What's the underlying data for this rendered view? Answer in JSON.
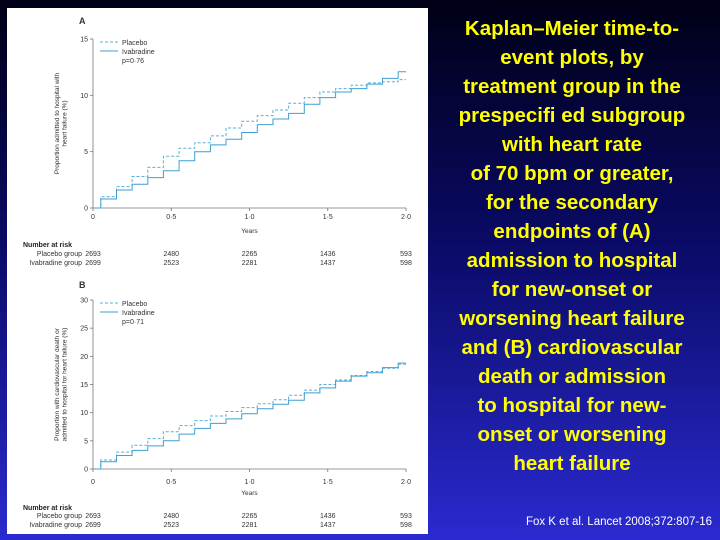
{
  "slide": {
    "title_lines": [
      "Kaplan–Meier time-to-",
      "event plots, by",
      "treatment group in the",
      "prespecifi ed subgroup",
      "with heart rate",
      "of 70 bpm or greater,",
      "for the secondary",
      "endpoints of (A)",
      "admission to hospital",
      "for new-onset or",
      "worsening heart failure",
      "and (B) cardiovascular",
      "death or admission",
      "to hospital for new-",
      "onset or worsening",
      "heart failure"
    ],
    "citation": "Fox K et al. Lancet 2008;372:807-16"
  },
  "colors": {
    "placebo": "#5aaed6",
    "ivabradine": "#3f9fd0",
    "title": "#ffff00"
  },
  "chart_data": [
    {
      "type": "line",
      "panel": "A",
      "xlabel": "Years",
      "ylabel_lines": [
        "Proportion admitted to hospital with",
        "heart failure (%)"
      ],
      "xlim": [
        0,
        2.0
      ],
      "ylim": [
        0,
        15
      ],
      "xticks": [
        0,
        0.5,
        1.0,
        1.5,
        2.0
      ],
      "xtick_labels": [
        "0",
        "0·5",
        "1·0",
        "1·5",
        "2·0"
      ],
      "yticks": [
        0,
        5,
        10,
        15
      ],
      "ytick_labels": [
        "0",
        "5",
        "10",
        "15"
      ],
      "legend": {
        "items": [
          "Placebo",
          "Ivabradine"
        ],
        "pvalue": "p=0·76",
        "placement": "top-left"
      },
      "series": [
        {
          "name": "Placebo",
          "style": "dashed",
          "x": [
            0,
            0.1,
            0.2,
            0.3,
            0.4,
            0.5,
            0.6,
            0.7,
            0.8,
            0.9,
            1.0,
            1.1,
            1.2,
            1.3,
            1.4,
            1.5,
            1.6,
            1.7,
            1.8,
            1.9,
            2.0
          ],
          "y": [
            0,
            1.0,
            1.9,
            2.8,
            3.6,
            4.6,
            5.3,
            5.8,
            6.4,
            7.1,
            7.7,
            8.2,
            8.7,
            9.3,
            9.8,
            10.3,
            10.6,
            10.9,
            11.1,
            11.2,
            11.4
          ]
        },
        {
          "name": "Ivabradine",
          "style": "solid",
          "x": [
            0,
            0.1,
            0.2,
            0.3,
            0.4,
            0.5,
            0.6,
            0.7,
            0.8,
            0.9,
            1.0,
            1.1,
            1.2,
            1.3,
            1.4,
            1.5,
            1.6,
            1.7,
            1.8,
            1.9,
            2.0
          ],
          "y": [
            0,
            0.8,
            1.6,
            2.1,
            2.7,
            3.3,
            4.2,
            5.0,
            5.6,
            6.1,
            6.7,
            7.4,
            7.9,
            8.4,
            9.2,
            9.8,
            10.3,
            10.6,
            11.0,
            11.5,
            12.1
          ]
        }
      ],
      "risk_table": {
        "title": "Number at risk",
        "rows": [
          {
            "group": "Placebo group",
            "values": [
              "2693",
              "2480",
              "2265",
              "1436",
              "593"
            ]
          },
          {
            "group": "Ivabradine group",
            "values": [
              "2699",
              "2523",
              "2281",
              "1437",
              "598"
            ]
          }
        ]
      }
    },
    {
      "type": "line",
      "panel": "B",
      "xlabel": "Years",
      "ylabel_lines": [
        "Proportion with cardiovascular death or",
        "admitted to hospital for heart failure (%)"
      ],
      "xlim": [
        0,
        2.0
      ],
      "ylim": [
        0,
        30
      ],
      "xticks": [
        0,
        0.5,
        1.0,
        1.5,
        2.0
      ],
      "xtick_labels": [
        "0",
        "0·5",
        "1·0",
        "1·5",
        "2·0"
      ],
      "yticks": [
        0,
        5,
        10,
        15,
        20,
        25,
        30
      ],
      "ytick_labels": [
        "0",
        "5",
        "10",
        "15",
        "20",
        "25",
        "30"
      ],
      "legend": {
        "items": [
          "Placebo",
          "Ivabradine"
        ],
        "pvalue": "p=0·71",
        "placement": "top-left"
      },
      "series": [
        {
          "name": "Placebo",
          "style": "dashed",
          "x": [
            0,
            0.1,
            0.2,
            0.3,
            0.4,
            0.5,
            0.6,
            0.7,
            0.8,
            0.9,
            1.0,
            1.1,
            1.2,
            1.3,
            1.4,
            1.5,
            1.6,
            1.7,
            1.8,
            1.9,
            2.0
          ],
          "y": [
            0,
            1.6,
            3.0,
            4.2,
            5.4,
            6.6,
            7.7,
            8.6,
            9.4,
            10.2,
            10.9,
            11.6,
            12.3,
            13.1,
            14.0,
            15.0,
            15.8,
            16.6,
            17.3,
            17.9,
            18.6
          ]
        },
        {
          "name": "Ivabradine",
          "style": "solid",
          "x": [
            0,
            0.1,
            0.2,
            0.3,
            0.4,
            0.5,
            0.6,
            0.7,
            0.8,
            0.9,
            1.0,
            1.1,
            1.2,
            1.3,
            1.4,
            1.5,
            1.6,
            1.7,
            1.8,
            1.9,
            2.0
          ],
          "y": [
            0,
            1.3,
            2.4,
            3.3,
            4.1,
            5.0,
            6.2,
            7.2,
            8.1,
            8.9,
            9.8,
            10.7,
            11.5,
            12.2,
            13.5,
            14.4,
            15.6,
            16.5,
            17.1,
            18.0,
            18.8
          ]
        }
      ],
      "risk_table": {
        "title": "Number at risk",
        "rows": [
          {
            "group": "Placebo group",
            "values": [
              "2693",
              "2480",
              "2265",
              "1436",
              "593"
            ]
          },
          {
            "group": "Ivabradine group",
            "values": [
              "2699",
              "2523",
              "2281",
              "1437",
              "598"
            ]
          }
        ]
      }
    }
  ]
}
